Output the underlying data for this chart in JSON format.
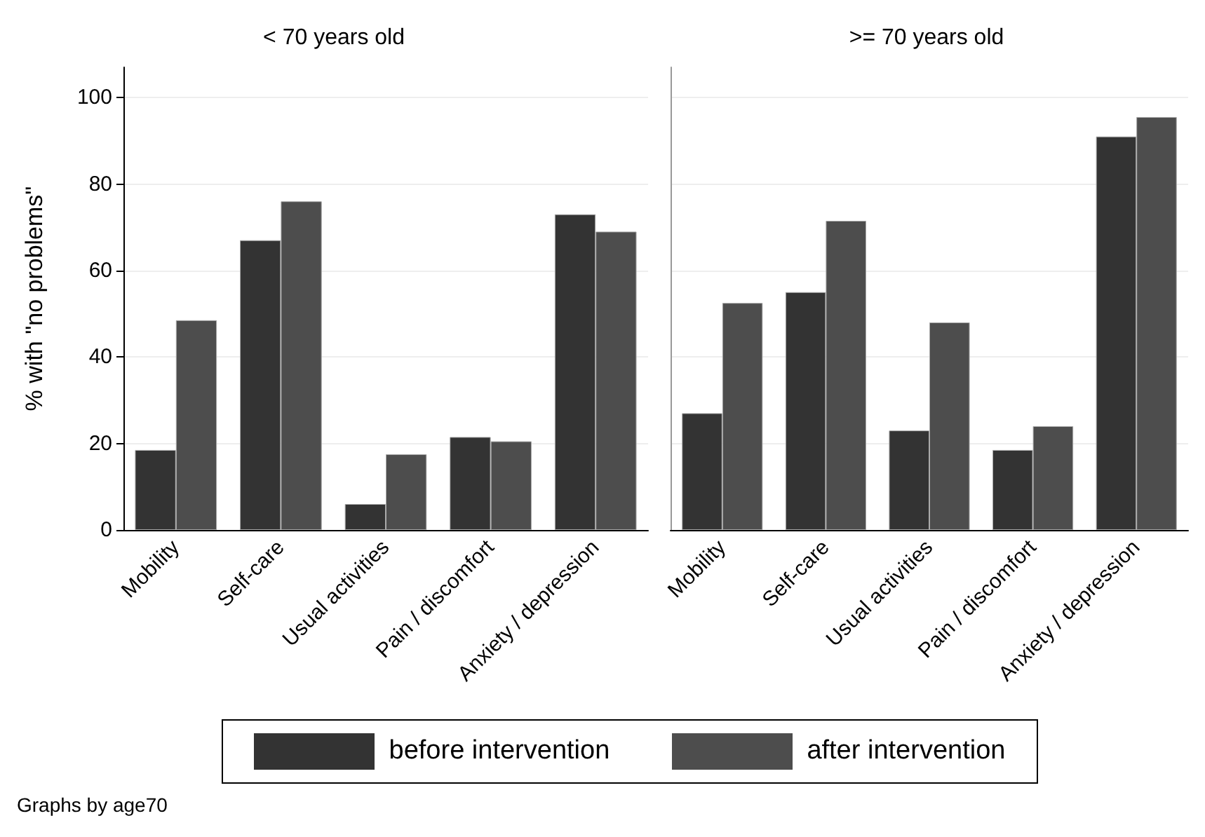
{
  "chart_data": [
    {
      "type": "bar",
      "title": "< 70 years old",
      "ylabel": "% with \"no problems\"",
      "categories": [
        "Mobility",
        "Self-care",
        "Usual activities",
        "Pain / discomfort",
        "Anxiety / depression"
      ],
      "series": [
        {
          "name": "before intervention",
          "color": "#333333",
          "values": [
            18.5,
            67,
            6,
            21.5,
            73
          ]
        },
        {
          "name": "after intervention",
          "color": "#4d4d4d",
          "values": [
            48.5,
            76,
            17.5,
            20.5,
            69
          ]
        }
      ],
      "ylim": [
        0,
        107
      ],
      "yticks": [
        0,
        20,
        40,
        60,
        80,
        100
      ],
      "grid": "y",
      "legend": "bottom",
      "annotations": [
        "Graphs by age70"
      ]
    },
    {
      "type": "bar",
      "title": ">= 70 years old",
      "categories": [
        "Mobility",
        "Self-care",
        "Usual activities",
        "Pain / discomfort",
        "Anxiety / depression"
      ],
      "series": [
        {
          "color": "#333333",
          "values": [
            27,
            55,
            23,
            18.5,
            91
          ]
        },
        {
          "color": "#4d4d4d",
          "values": [
            52.5,
            71.5,
            48,
            24,
            95.5
          ]
        }
      ],
      "ylim": [
        0,
        107
      ],
      "yticks": [
        0,
        20,
        40,
        60,
        80,
        100
      ],
      "grid": "y",
      "tick_labels": "x"
    }
  ]
}
